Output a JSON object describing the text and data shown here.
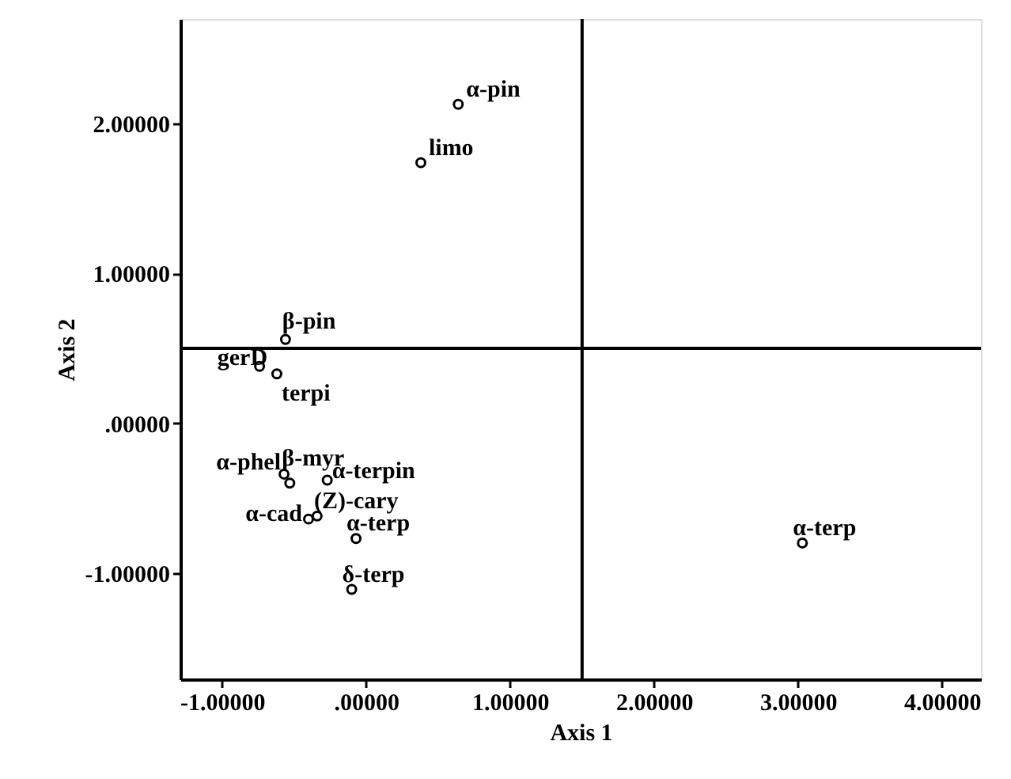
{
  "chart_data": {
    "type": "scatter",
    "xlabel": "Axis 1",
    "ylabel": "Axis 2",
    "x": [
      0.64,
      0.38,
      -0.56,
      -0.74,
      -0.62,
      -0.57,
      -0.53,
      -0.27,
      -0.4,
      -0.34,
      -0.07,
      -0.1,
      3.03
    ],
    "values": [
      2.13,
      1.74,
      0.56,
      0.38,
      0.33,
      -0.34,
      -0.4,
      -0.38,
      -0.64,
      -0.62,
      -0.77,
      -1.11,
      -0.8
    ],
    "color": "#000000",
    "marker": "circle",
    "grid": false,
    "xlim": [
      -1.29,
      4.27
    ],
    "ylim": [
      -1.71,
      2.7
    ],
    "xticks": [
      {
        "value": -1,
        "label": "-1.00000"
      },
      {
        "value": 0,
        "label": ".00000"
      },
      {
        "value": 1,
        "label": "1.00000"
      },
      {
        "value": 2,
        "label": "2.00000"
      },
      {
        "value": 3,
        "label": "3.00000"
      },
      {
        "value": 4,
        "label": "4.00000"
      }
    ],
    "yticks": [
      {
        "value": -1,
        "label": "-1.00000"
      },
      {
        "value": 0,
        "label": ".00000"
      },
      {
        "value": 1,
        "label": "1.00000"
      },
      {
        "value": 2,
        "label": "2.00000"
      }
    ],
    "ref_lines": [
      {
        "axis": "x",
        "value": 1.5,
        "color": "#000000"
      },
      {
        "axis": "y",
        "value": 0.5,
        "color": "#000000"
      }
    ],
    "annotations": [
      {
        "text": "α-pin",
        "x": 0.64,
        "y": 2.13
      },
      {
        "text": "limo",
        "x": 0.38,
        "y": 1.74
      },
      {
        "text": "β-pin",
        "x": -0.56,
        "y": 0.56
      },
      {
        "text": "gerD",
        "x": -0.74,
        "y": 0.38
      },
      {
        "text": "terpi",
        "x": -0.62,
        "y": 0.33
      },
      {
        "text": "α-phel",
        "x": -0.57,
        "y": -0.34
      },
      {
        "text": "β-myr",
        "x": -0.53,
        "y": -0.4
      },
      {
        "text": "α-terpin",
        "x": -0.27,
        "y": -0.38
      },
      {
        "text": "α-cad",
        "x": -0.4,
        "y": -0.64
      },
      {
        "text": "(Z)-cary",
        "x": -0.34,
        "y": -0.62
      },
      {
        "text": "α-terp",
        "x": -0.07,
        "y": -0.77
      },
      {
        "text": "δ-terp",
        "x": -0.1,
        "y": -1.11
      },
      {
        "text": "α-terp",
        "x": 3.03,
        "y": -0.8
      }
    ]
  }
}
